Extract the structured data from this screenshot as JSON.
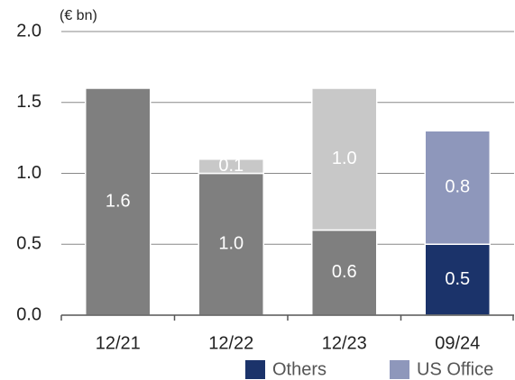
{
  "chart_data": {
    "type": "stacked_bar",
    "unit": "(€ bn)",
    "categories": [
      "12/21",
      "12/22",
      "12/23",
      "09/24"
    ],
    "series": [
      {
        "color": "#7f7f7f",
        "values": [
          1.6,
          1.0,
          0.6,
          null
        ],
        "value_labels": [
          "1.6",
          "1.0",
          "0.6",
          null
        ]
      },
      {
        "color": "#c8c8c8",
        "values": [
          null,
          0.1,
          1.0,
          null
        ],
        "value_labels": [
          null,
          "0.1",
          "1.0",
          null
        ]
      },
      {
        "name": "Others",
        "color": "#1b336a",
        "values": [
          null,
          null,
          null,
          0.5
        ],
        "value_labels": [
          null,
          null,
          null,
          "0.5"
        ]
      },
      {
        "name": "US Office",
        "color": "#8e97bb",
        "values": [
          null,
          null,
          null,
          0.8
        ],
        "value_labels": [
          null,
          null,
          null,
          "0.8"
        ]
      }
    ],
    "ylim": [
      0,
      2
    ],
    "yticks": [
      {
        "value": 0,
        "label": "0.0"
      },
      0.5,
      {
        "value": 1,
        "label": "1.0"
      },
      1.5,
      {
        "value": 2,
        "label": "2.0"
      }
    ],
    "grid": true,
    "legend": "bottom-right"
  }
}
